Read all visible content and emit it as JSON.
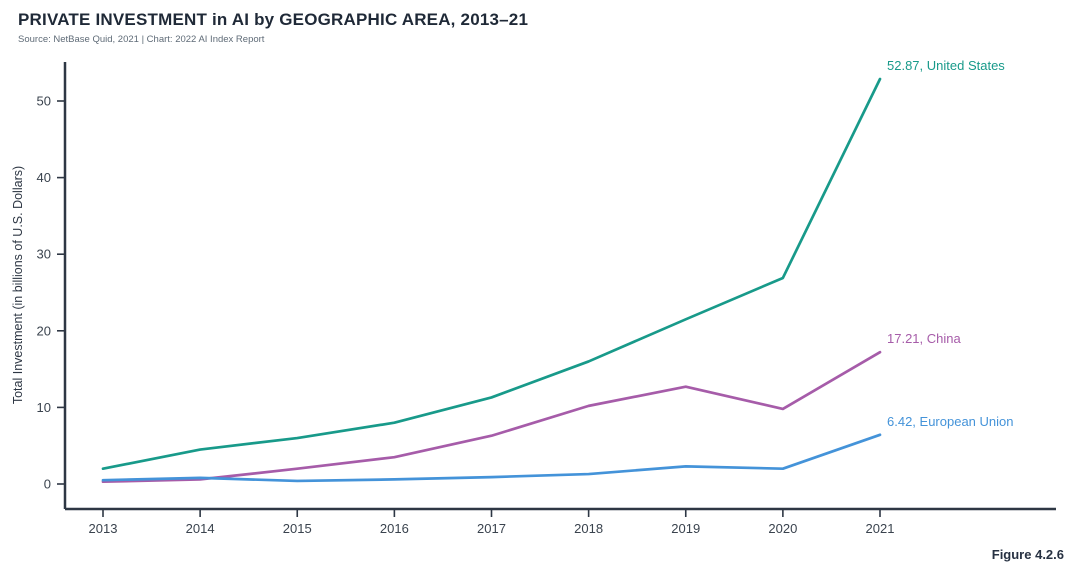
{
  "header": {
    "title": "PRIVATE INVESTMENT in AI by GEOGRAPHIC AREA, 2013–21",
    "source": "Source: NetBase Quid, 2021 | Chart: 2022 AI Index Report"
  },
  "figure_label": "Figure 4.2.6",
  "colors": {
    "axis": "#2e3744",
    "tick_label": "#3a434e",
    "title": "#1f2937",
    "source_text": "#5f6b77",
    "united_states": "#189a8a",
    "china": "#a65ca9",
    "european_union": "#4493d9"
  },
  "chart_data": {
    "type": "line",
    "title": "PRIVATE INVESTMENT in AI by GEOGRAPHIC AREA, 2013–21",
    "xlabel": "",
    "ylabel": "Total Investment (in billions of U.S. Dollars)",
    "x": [
      2013,
      2014,
      2015,
      2016,
      2017,
      2018,
      2019,
      2020,
      2021
    ],
    "ylim": [
      0,
      55
    ],
    "yticks": [
      0,
      10,
      20,
      30,
      40,
      50
    ],
    "grid": false,
    "legend_position": "end-of-line labels",
    "series": [
      {
        "name": "United States",
        "color": "#189a8a",
        "end_label": "52.87, United States",
        "final_value": 52.87,
        "values": [
          2.0,
          4.5,
          6.0,
          8.0,
          11.3,
          16.0,
          21.5,
          26.9,
          52.87
        ]
      },
      {
        "name": "China",
        "color": "#a65ca9",
        "end_label": "17.21, China",
        "final_value": 17.21,
        "values": [
          0.3,
          0.6,
          2.0,
          3.5,
          6.3,
          10.2,
          12.7,
          9.8,
          17.21
        ]
      },
      {
        "name": "European Union",
        "color": "#4493d9",
        "end_label": "6.42, European Union",
        "final_value": 6.42,
        "values": [
          0.5,
          0.8,
          0.4,
          0.6,
          0.9,
          1.3,
          2.3,
          2.0,
          6.42
        ]
      }
    ]
  }
}
